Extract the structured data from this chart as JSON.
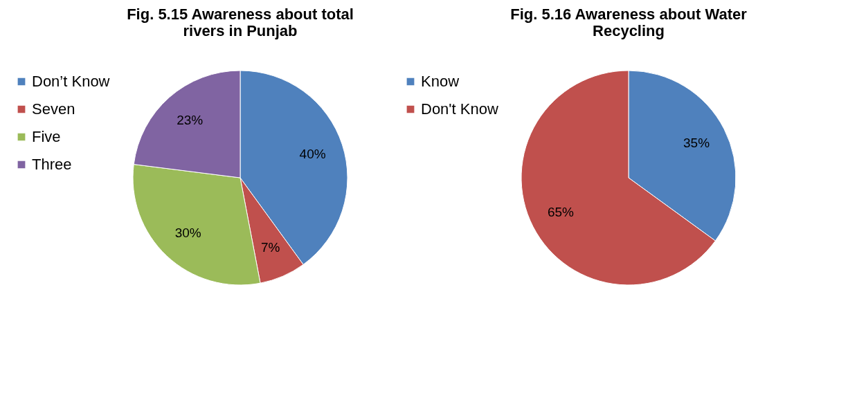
{
  "chart_data": [
    {
      "type": "pie",
      "title": "Fig. 5.15 Awareness about total rivers in Punjab",
      "categories": [
        "Don’t Know",
        "Seven",
        "Five",
        "Three"
      ],
      "values": [
        40,
        7,
        30,
        23
      ],
      "colors": [
        "#4f81bd",
        "#c0504d",
        "#9bbb59",
        "#8064a2"
      ],
      "value_labels": [
        "40%",
        "7%",
        "30%",
        "23%"
      ],
      "legend": "left"
    },
    {
      "type": "pie",
      "title": "Fig. 5.16 Awareness about Water Recycling",
      "categories": [
        "Know",
        "Don't Know"
      ],
      "values": [
        35,
        65
      ],
      "colors": [
        "#4f81bd",
        "#c0504d"
      ],
      "value_labels": [
        "35%",
        "65%"
      ],
      "legend": "left"
    }
  ]
}
